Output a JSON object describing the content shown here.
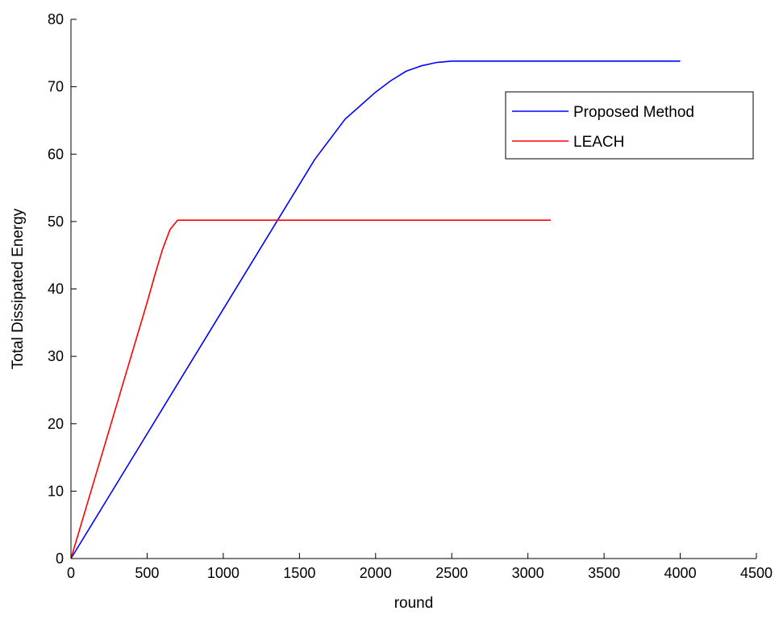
{
  "chart_data": {
    "type": "line",
    "title": "",
    "xlabel": "round",
    "ylabel": "Total Dissipated Energy",
    "xlim": [
      0,
      4500
    ],
    "ylim": [
      0,
      80
    ],
    "xticks": [
      0,
      500,
      1000,
      1500,
      2000,
      2500,
      3000,
      3500,
      4000,
      4500
    ],
    "yticks": [
      0,
      10,
      20,
      30,
      40,
      50,
      60,
      70,
      80
    ],
    "xtick_labels": [
      "0",
      "500",
      "1000",
      "1500",
      "2000",
      "2500",
      "3000",
      "3500",
      "4000",
      "4500"
    ],
    "ytick_labels": [
      "0",
      "10",
      "20",
      "30",
      "40",
      "50",
      "60",
      "70",
      "80"
    ],
    "grid": false,
    "legend_position": "top-right",
    "series": [
      {
        "name": "Proposed Method",
        "color": "#0000ff",
        "x": [
          0,
          200,
          400,
          600,
          800,
          1000,
          1200,
          1400,
          1600,
          1800,
          2000,
          2100,
          2200,
          2300,
          2400,
          2500,
          2600,
          3000,
          3500,
          4000
        ],
        "y": [
          0,
          7.4,
          14.8,
          22.2,
          29.6,
          37.0,
          44.4,
          51.8,
          59.2,
          65.2,
          69.2,
          70.9,
          72.3,
          73.1,
          73.6,
          73.8,
          73.8,
          73.8,
          73.8,
          73.8
        ]
      },
      {
        "name": "LEACH",
        "color": "#ff0000",
        "x": [
          0,
          100,
          200,
          300,
          400,
          500,
          550,
          600,
          650,
          700,
          800,
          1000,
          1500,
          2000,
          2500,
          3000,
          3150
        ],
        "y": [
          0,
          7.6,
          15.2,
          22.8,
          30.4,
          38.0,
          42.0,
          45.8,
          48.8,
          50.2,
          50.2,
          50.2,
          50.2,
          50.2,
          50.2,
          50.2,
          50.2
        ]
      }
    ]
  }
}
